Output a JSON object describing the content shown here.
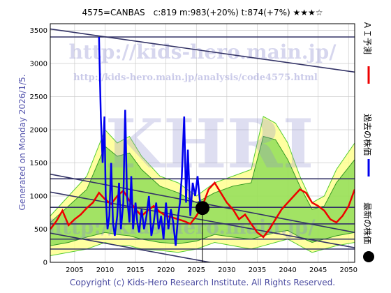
{
  "header": {
    "title": "4575=CANBAS　c:819  m:983(+20%)  t:874(+7%)  ★★★☆"
  },
  "side_note": "Generated on Monday 2026/1/5.",
  "footer": "Copyright (c) Kids-Hero Research Institute. All Rights Reserved.",
  "watermark": {
    "big": "KHRI",
    "url": "http://kids-hero.main.jp/",
    "url2": "http://kids-hero.main.jp/analysis/code4575.html",
    "url_lower": "http://kids-hero.main.jp/"
  },
  "legend": [
    {
      "label": "ＡＩ予測",
      "color": "#ee0000",
      "marker": "line"
    },
    {
      "label": "過去の株価",
      "color": "#0000ee",
      "marker": "line"
    },
    {
      "label": "最新の株価",
      "color": "#000000",
      "marker": "dot"
    }
  ],
  "colors": {
    "band_light": "#ffff88",
    "band_green": "#55cc33",
    "trend": "#333366",
    "grid": "#cccccc"
  },
  "chart_data": {
    "type": "line",
    "xlim": [
      2001,
      2051
    ],
    "ylim": [
      0,
      3600
    ],
    "x_ticks": [
      2005,
      2010,
      2015,
      2020,
      2025,
      2030,
      2035,
      2040,
      2045,
      2050
    ],
    "y_ticks": [
      0,
      500,
      1000,
      1500,
      2000,
      2500,
      3000,
      3500
    ],
    "grid": true,
    "latest": {
      "x": 2026.0,
      "y": 819
    },
    "trend_lines": [
      {
        "x": [
          2001,
          2051
        ],
        "y": [
          3520,
          2870
        ]
      },
      {
        "x": [
          2001,
          2051
        ],
        "y": [
          1330,
          450
        ]
      },
      {
        "x": [
          2001,
          2051
        ],
        "y": [
          1060,
          220
        ]
      },
      {
        "x": [
          2001,
          2051
        ],
        "y": [
          440,
          -400
        ]
      }
    ],
    "horizontal_lines": [
      3400,
      1260,
      830,
      580,
      350,
      200
    ],
    "ai_forecast": {
      "name": "ＡＩ予測",
      "x": [
        2001,
        2002,
        2003,
        2004,
        2005,
        2006,
        2007,
        2008,
        2009,
        2010,
        2011,
        2012,
        2013,
        2014,
        2015,
        2016,
        2017,
        2018,
        2019,
        2020,
        2021,
        2022,
        2023,
        2024,
        2025,
        2026,
        2027,
        2028,
        2029,
        2030,
        2031,
        2032,
        2033,
        2034,
        2035,
        2036,
        2037,
        2038,
        2039,
        2040,
        2041,
        2042,
        2043,
        2044,
        2045,
        2046,
        2047,
        2048,
        2049,
        2050,
        2051
      ],
      "y": [
        500,
        620,
        780,
        560,
        650,
        720,
        820,
        900,
        1050,
        950,
        880,
        1000,
        1080,
        930,
        800,
        700,
        780,
        850,
        760,
        700,
        680,
        650,
        620,
        580,
        700,
        850,
        1100,
        1200,
        1050,
        900,
        800,
        650,
        720,
        580,
        450,
        380,
        500,
        650,
        800,
        900,
        1000,
        1100,
        1050,
        900,
        850,
        780,
        650,
        600,
        700,
        850,
        1100
      ]
    },
    "band_outer_upper": {
      "x": [
        2001,
        2004,
        2007,
        2010,
        2012,
        2014,
        2016,
        2019,
        2022,
        2025,
        2028,
        2031,
        2034,
        2036,
        2038,
        2040,
        2042,
        2044,
        2046,
        2048,
        2051
      ],
      "y": [
        700,
        1000,
        1300,
        2000,
        1800,
        1900,
        1600,
        1300,
        1200,
        1000,
        1200,
        1300,
        1400,
        2200,
        2100,
        1800,
        1300,
        900,
        1000,
        1400,
        1800
      ]
    },
    "band_outer_lower": {
      "x": [
        2001,
        2004,
        2007,
        2010,
        2012,
        2014,
        2016,
        2019,
        2022,
        2025,
        2028,
        2031,
        2034,
        2036,
        2038,
        2040,
        2042,
        2044,
        2046,
        2048,
        2051
      ],
      "y": [
        100,
        150,
        200,
        300,
        250,
        250,
        200,
        180,
        150,
        200,
        300,
        250,
        200,
        250,
        300,
        350,
        250,
        150,
        200,
        250,
        300
      ]
    },
    "band_inner_upper": {
      "x": [
        2001,
        2004,
        2007,
        2010,
        2012,
        2014,
        2016,
        2019,
        2022,
        2025,
        2028,
        2031,
        2034,
        2036,
        2038,
        2040,
        2042,
        2044,
        2046,
        2048,
        2051
      ],
      "y": [
        600,
        850,
        1100,
        1750,
        1600,
        1650,
        1400,
        1150,
        1050,
        900,
        1050,
        1150,
        1200,
        1900,
        1850,
        1550,
        1150,
        800,
        850,
        1200,
        1550
      ]
    },
    "band_inner_lower": {
      "x": [
        2001,
        2004,
        2007,
        2010,
        2012,
        2014,
        2016,
        2019,
        2022,
        2025,
        2028,
        2031,
        2034,
        2036,
        2038,
        2040,
        2042,
        2044,
        2046,
        2048,
        2051
      ],
      "y": [
        250,
        300,
        380,
        450,
        420,
        400,
        350,
        300,
        280,
        320,
        420,
        380,
        350,
        400,
        450,
        480,
        380,
        300,
        350,
        400,
        450
      ]
    },
    "price": {
      "name": "過去の株価",
      "x": [
        2009.0,
        2009.3,
        2009.6,
        2009.9,
        2010.1,
        2010.4,
        2010.7,
        2011.0,
        2011.3,
        2011.6,
        2012.0,
        2012.3,
        2012.6,
        2013.0,
        2013.3,
        2013.6,
        2014.0,
        2014.3,
        2014.6,
        2015.0,
        2015.3,
        2015.6,
        2016.0,
        2016.4,
        2016.8,
        2017.2,
        2017.6,
        2018.0,
        2018.4,
        2018.8,
        2019.2,
        2019.6,
        2020.0,
        2020.4,
        2020.8,
        2021.2,
        2021.6,
        2022.0,
        2022.3,
        2022.6,
        2023.0,
        2023.3,
        2023.6,
        2024.0,
        2024.4,
        2024.8,
        2025.2,
        2025.6,
        2026.0
      ],
      "y": [
        3400,
        2200,
        1500,
        2200,
        1000,
        500,
        700,
        1500,
        600,
        400,
        700,
        1200,
        500,
        900,
        2300,
        1000,
        600,
        1300,
        500,
        900,
        600,
        450,
        800,
        500,
        700,
        1000,
        400,
        600,
        900,
        500,
        700,
        350,
        900,
        500,
        800,
        600,
        250,
        700,
        900,
        1300,
        2200,
        900,
        1700,
        700,
        1200,
        1000,
        1300,
        900,
        819
      ]
    }
  }
}
